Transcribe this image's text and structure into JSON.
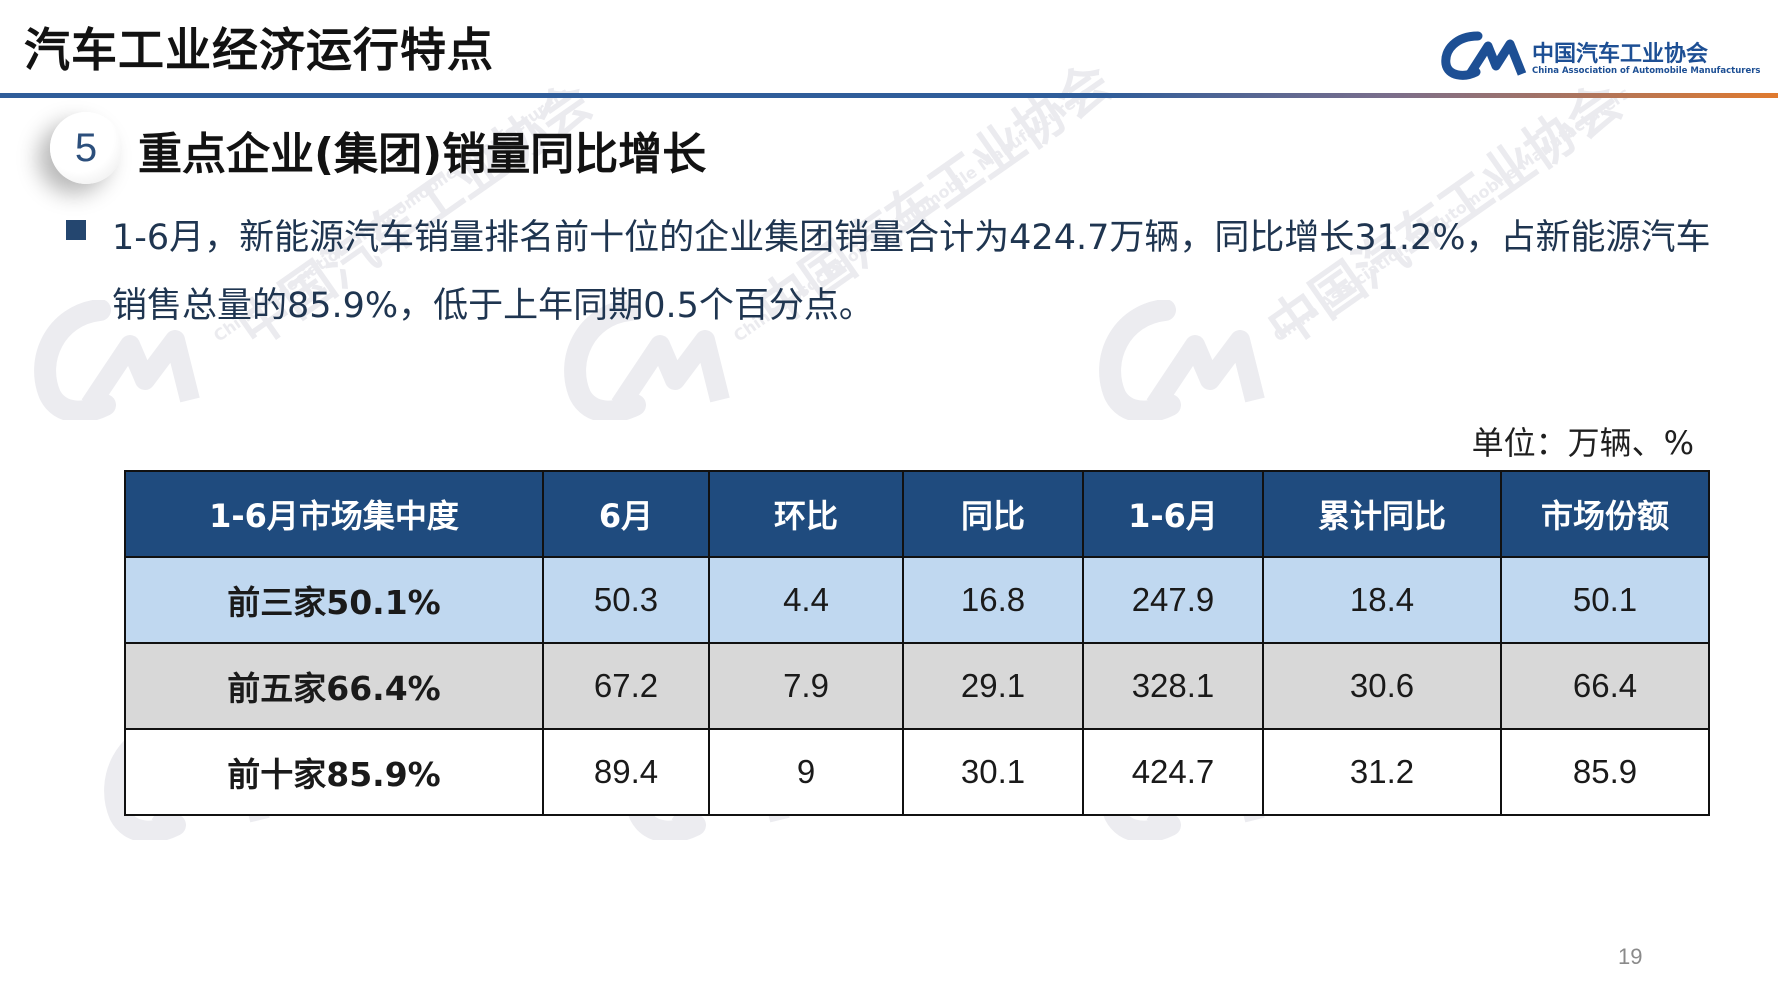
{
  "header": {
    "title": "汽车工业经济运行特点",
    "brand_cn": "中国汽车工业协会",
    "brand_en": "China Association of Automobile Manufacturers",
    "logo_text": "CAAM"
  },
  "section": {
    "number": "5",
    "title": "重点企业(集团)销量同比增长"
  },
  "bullet": {
    "text": "1-6月，新能源汽车销量排名前十位的企业集团销量合计为424.7万辆，同比增长31.2%，占新能源汽车销售总量的85.9%，低于上年同期0.5个百分点。"
  },
  "unit": "单位：万辆、%",
  "table": {
    "headers": [
      "1-6月市场集中度",
      "6月",
      "环比",
      "同比",
      "1-6月",
      "累计同比",
      "市场份额"
    ],
    "rows": [
      [
        "前三家50.1%",
        "50.3",
        "4.4",
        "16.8",
        "247.9",
        "18.4",
        "50.1"
      ],
      [
        "前五家66.4%",
        "67.2",
        "7.9",
        "29.1",
        "328.1",
        "30.6",
        "66.4"
      ],
      [
        "前十家85.9%",
        "89.4",
        "9",
        "30.1",
        "424.7",
        "31.2",
        "85.9"
      ]
    ]
  },
  "watermark": {
    "text_cn": "中国汽车工业协会",
    "text_en": "China Association of Automobile Manufacturers"
  },
  "page_number": "19",
  "colors": {
    "header_blue": "#1f4b7e",
    "row1": "#c0d8f0",
    "row2": "#d8d8d8",
    "brand": "#1d4f94"
  }
}
